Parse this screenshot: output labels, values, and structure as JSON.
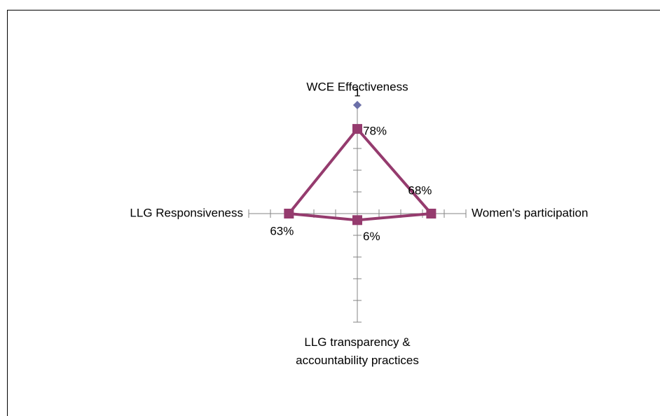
{
  "chart_data": {
    "type": "radar",
    "categories": [
      "WCE Effectiveness",
      "Women's participation",
      "LLG transparency & accountability practices",
      "LLG Responsiveness"
    ],
    "ylim": [
      0,
      1
    ],
    "yticks": [
      0,
      0.2,
      0.4,
      0.6,
      0.8,
      1
    ],
    "series": [
      {
        "color": "#953b6e",
        "marker": "square",
        "values": [
          0.78,
          0.68,
          0.06,
          0.63
        ],
        "value_labels": [
          "78%",
          "68%",
          "6%",
          "63%"
        ]
      },
      {
        "color": "#6b6fa8",
        "marker": "diamond",
        "values": [
          1,
          null,
          null,
          null
        ],
        "value_labels": [
          "1",
          null,
          null,
          null
        ]
      }
    ]
  }
}
